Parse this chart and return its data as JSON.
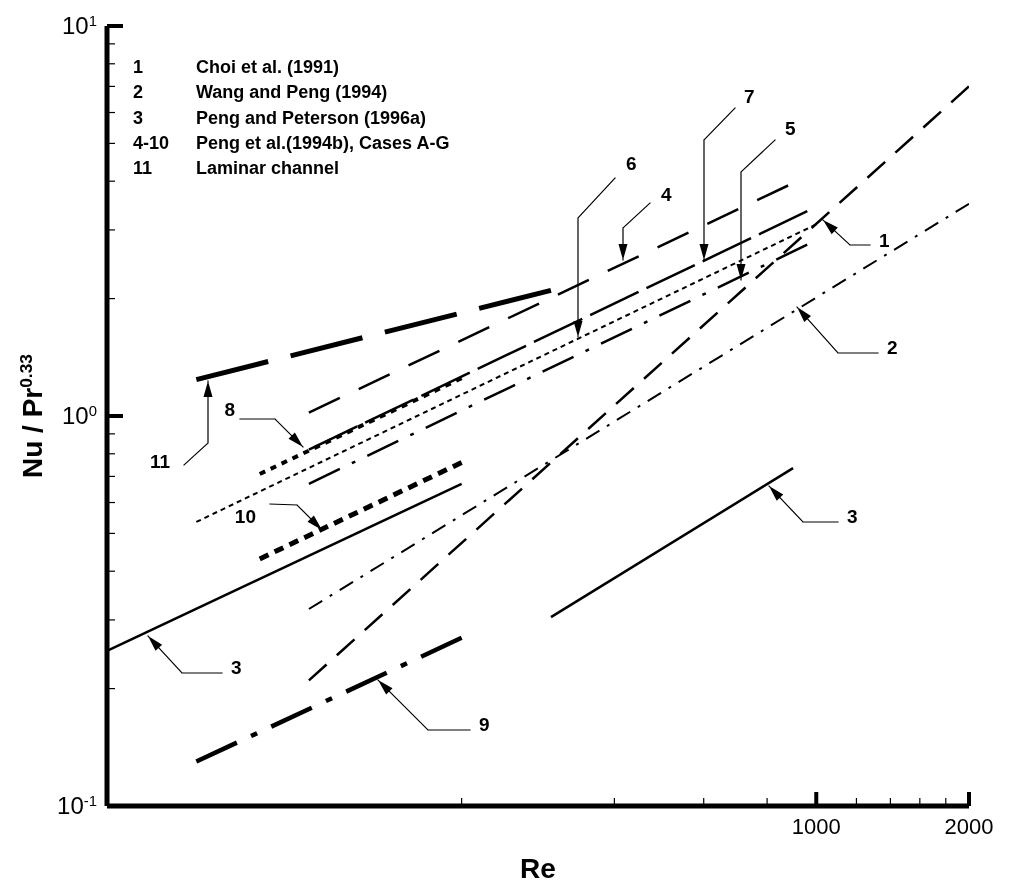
{
  "chart_data": {
    "type": "line",
    "xlabel": "Re",
    "ylabel": "Nu / Pr$^{0.33}$",
    "log": "xy",
    "xlim": [
      40,
      2000
    ],
    "ylim": [
      0.1,
      10
    ],
    "xticks": [
      {
        "value": 200,
        "label": null
      },
      {
        "value": 400,
        "label": null
      },
      {
        "value": 600,
        "label": null
      },
      {
        "value": 800,
        "label": null
      },
      1000,
      {
        "value": 1200,
        "label": null
      },
      {
        "value": 1400,
        "label": null
      },
      {
        "value": 1600,
        "label": null
      },
      {
        "value": 1800,
        "label": null
      },
      2000
    ],
    "yticks": [
      {
        "value": 0.1,
        "label": "10$^{-1}$"
      },
      {
        "value": 0.2,
        "label": null
      },
      {
        "value": 0.3,
        "label": null
      },
      {
        "value": 0.4,
        "label": null
      },
      {
        "value": 0.5,
        "label": null
      },
      {
        "value": 0.6,
        "label": null
      },
      {
        "value": 0.7,
        "label": null
      },
      {
        "value": 0.8,
        "label": null
      },
      {
        "value": 0.9,
        "label": null
      },
      {
        "value": 1,
        "label": "10$^{0}$"
      },
      {
        "value": 2,
        "label": null
      },
      {
        "value": 3,
        "label": null
      },
      {
        "value": 4,
        "label": null
      },
      {
        "value": 5,
        "label": null
      },
      {
        "value": 6,
        "label": null
      },
      {
        "value": 7,
        "label": null
      },
      {
        "value": 8,
        "label": null
      },
      {
        "value": 9,
        "label": null
      },
      {
        "value": 10,
        "label": "10$^{1}$"
      }
    ],
    "annotations": [
      "1 Choi et al. (1991)",
      "2 Wang and Peng (1994)",
      "3 Peng and Peterson (1996a)",
      "4-10 Peng et al.(1994b), Cases A-G",
      "11 Laminar channel",
      "1",
      "2",
      "3",
      "3",
      "4",
      "5",
      "6",
      "7",
      "8",
      "9",
      "10",
      "11"
    ],
    "series": [
      {
        "color": "#000000",
        "line_style": "dashed",
        "x": [
          100,
          2000
        ],
        "values": [
          0.21,
          7.0
        ]
      },
      {
        "color": "#000000",
        "line_style": "dashdot",
        "x": [
          100,
          2000
        ],
        "values": [
          0.32,
          3.5
        ]
      },
      {
        "color": "#000000",
        "line_style": "solid",
        "x": [
          40,
          200
        ],
        "values": [
          0.25,
          0.67
        ]
      },
      {
        "color": "#000000",
        "line_style": "solid",
        "x": [
          300,
          900
        ],
        "values": [
          0.305,
          0.735
        ]
      },
      {
        "color": "#000000",
        "line_style": "dashed",
        "x": [
          100,
          880
        ],
        "values": [
          1.02,
          3.9
        ]
      },
      {
        "color": "#000000",
        "line_style": "dashdot",
        "x": [
          100,
          960
        ],
        "values": [
          0.67,
          2.75
        ]
      },
      {
        "color": "#000000",
        "line_style": "dotted",
        "x": [
          60,
          1000
        ],
        "values": [
          0.535,
          3.1
        ]
      },
      {
        "color": "#000000",
        "line_style": "dashed",
        "x": [
          100,
          960
        ],
        "values": [
          0.82,
          3.35
        ]
      },
      {
        "color": "#000000",
        "line_style": "dotted",
        "x": [
          80,
          200
        ],
        "values": [
          0.71,
          1.25
        ]
      },
      {
        "color": "#000000",
        "line_style": "dashdot",
        "x": [
          60,
          200
        ],
        "values": [
          0.13,
          0.27
        ]
      },
      {
        "color": "#000000",
        "line_style": "dashed",
        "x": [
          80,
          200
        ],
        "values": [
          0.43,
          0.76
        ]
      },
      {
        "color": "#000000",
        "line_style": "dashed",
        "x": [
          60,
          300
        ],
        "values": [
          1.24,
          2.1
        ]
      }
    ]
  }
}
